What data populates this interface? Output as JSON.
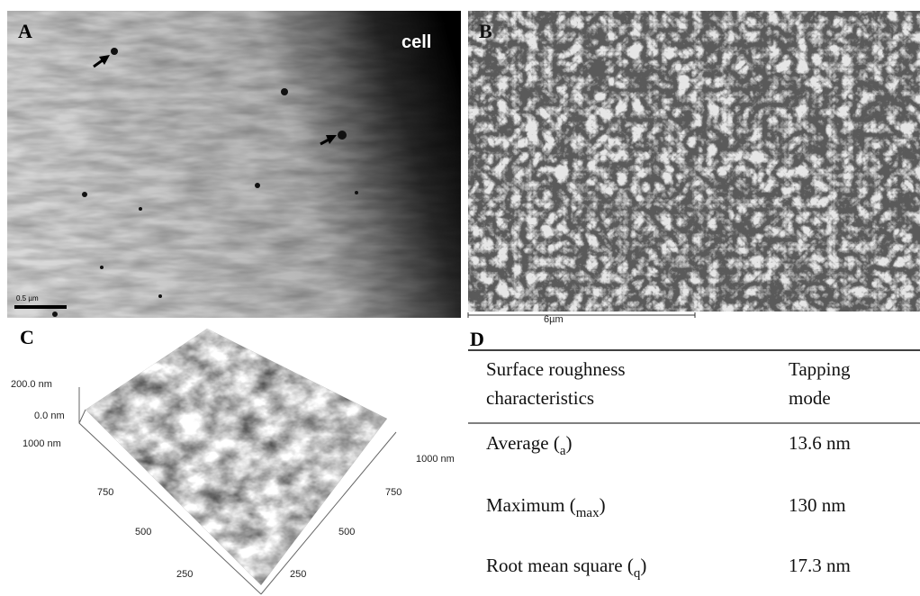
{
  "panels": {
    "a": {
      "label": "A",
      "annotation": "cell",
      "scale_bar": "0.5 µm"
    },
    "b": {
      "label": "B",
      "scale_bar": "6µm"
    },
    "c": {
      "label": "C",
      "z_axis": [
        "200.0 nm",
        "0.0 nm"
      ],
      "left_axis": [
        "1000 nm",
        "750",
        "500",
        "250"
      ],
      "right_axis": [
        "1000 nm",
        "750",
        "500",
        "250"
      ]
    },
    "d": {
      "label": "D",
      "table": {
        "header": [
          [
            "Surface roughness",
            "characteristics"
          ],
          [
            "Tapping",
            "mode"
          ]
        ],
        "rows": [
          {
            "prefix": "Average (",
            "sub": "a",
            "suffix": ")",
            "value": "13.6 nm"
          },
          {
            "prefix": "Maximum (",
            "sub": "max",
            "suffix": ")",
            "value": "130 nm"
          },
          {
            "prefix": "Root mean square (",
            "sub": "q",
            "suffix": ")",
            "value": "17.3 nm"
          }
        ]
      }
    }
  }
}
